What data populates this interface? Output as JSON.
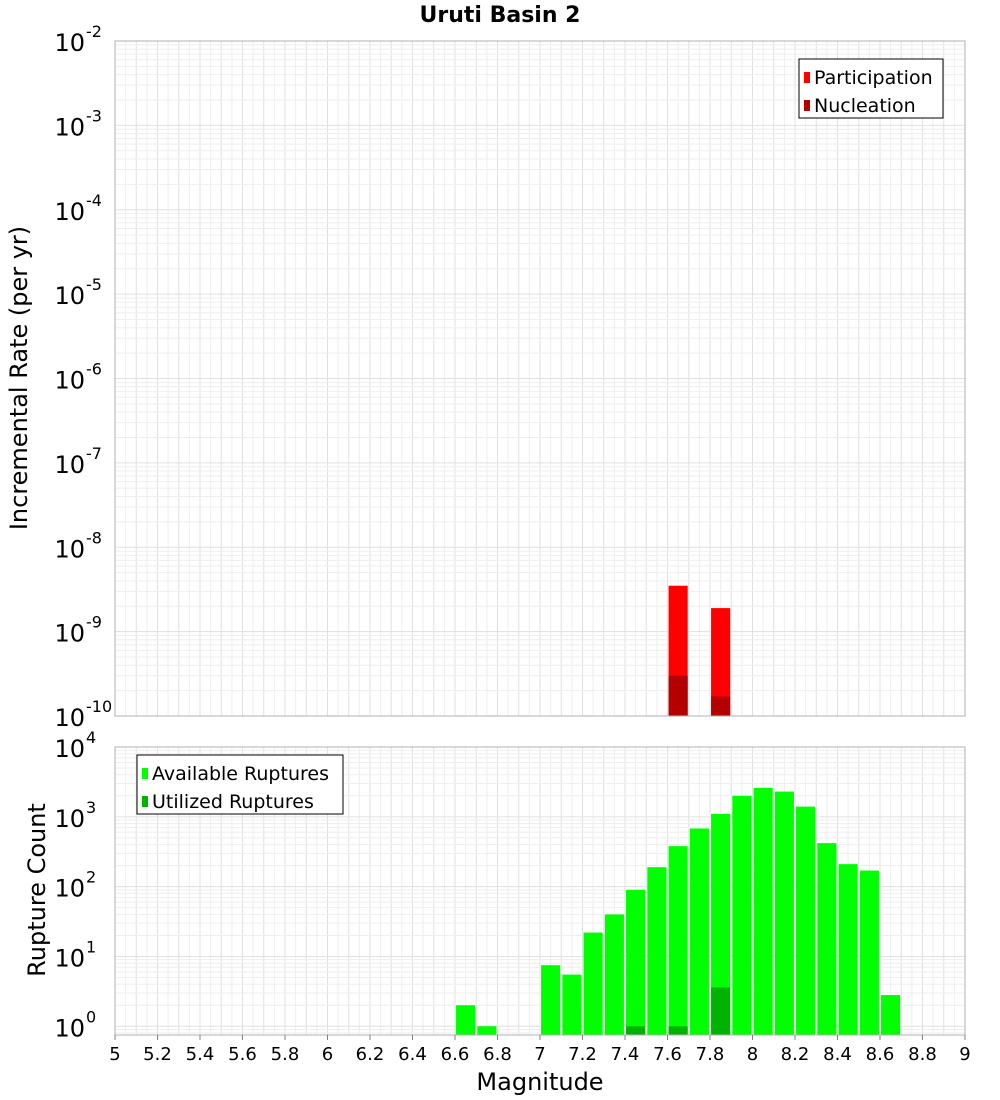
{
  "chart_data": [
    {
      "type": "bar",
      "title": "Uruti Basin 2",
      "xlabel": "",
      "ylabel": "Incremental Rate (per yr)",
      "yscale": "log",
      "xlim": [
        5,
        9
      ],
      "ylim": [
        1e-10,
        0.01
      ],
      "grid": true,
      "legend_position": "top-right",
      "x_bins": [
        7.65,
        7.85
      ],
      "series": [
        {
          "name": "Participation",
          "color": "#ff0000",
          "values": [
            3.5e-09,
            1.9e-09
          ]
        },
        {
          "name": "Nucleation",
          "color": "#b30000",
          "values": [
            3e-10,
            1.7e-10
          ]
        }
      ]
    },
    {
      "type": "bar",
      "title": "",
      "xlabel": "Magnitude",
      "ylabel": "Rupture Count",
      "yscale": "log",
      "xlim": [
        5,
        9
      ],
      "ylim": [
        0.75,
        10000
      ],
      "grid": true,
      "legend_position": "top-left",
      "x_bins": [
        6.65,
        6.75,
        7.05,
        7.15,
        7.25,
        7.35,
        7.45,
        7.55,
        7.65,
        7.75,
        7.85,
        7.95,
        8.05,
        8.15,
        8.25,
        8.35,
        8.45,
        8.55,
        8.65
      ],
      "series": [
        {
          "name": "Available Ruptures",
          "color": "#00ff00",
          "values": [
            2,
            1,
            7.5,
            5.5,
            22,
            40,
            90,
            190,
            380,
            680,
            1100,
            2000,
            2600,
            2300,
            1400,
            420,
            210,
            170,
            2.8
          ]
        },
        {
          "name": "Utilized Ruptures",
          "color": "#00b300",
          "values": [
            0,
            0,
            0,
            0,
            0,
            0,
            1,
            0,
            1,
            0,
            3.6,
            0,
            0,
            0,
            0,
            0,
            0,
            0,
            0
          ]
        }
      ]
    }
  ],
  "axis": {
    "x_ticks": [
      "5",
      "5.2",
      "5.4",
      "5.6",
      "5.8",
      "6",
      "6.2",
      "6.4",
      "6.6",
      "6.8",
      "7",
      "7.2",
      "7.4",
      "7.6",
      "7.8",
      "8",
      "8.2",
      "8.4",
      "8.6",
      "8.8",
      "9"
    ],
    "top_y_exponents": [
      "-2",
      "-3",
      "-4",
      "-5",
      "-6",
      "-7",
      "-8",
      "-9",
      "-10"
    ],
    "bottom_y_exponents": [
      "4",
      "3",
      "2",
      "1",
      "0"
    ],
    "tick_base": "10"
  }
}
